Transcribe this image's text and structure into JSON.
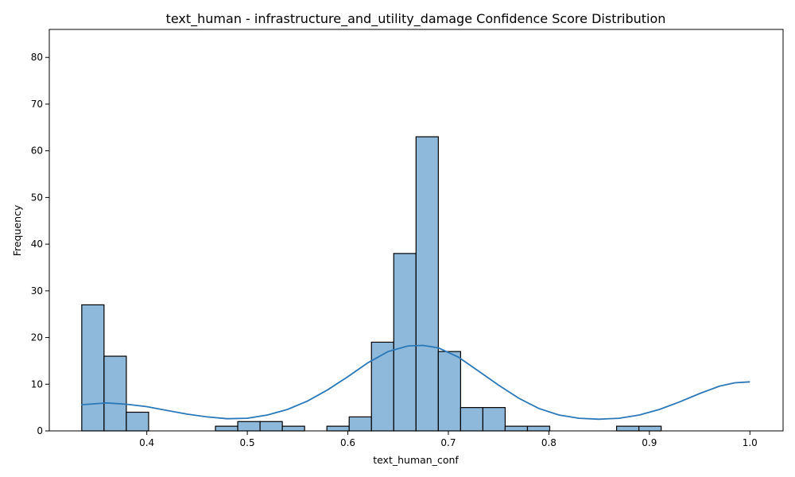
{
  "chart_data": {
    "type": "bar",
    "title": "text_human - infrastructure_and_utility_damage Confidence Score Distribution",
    "xlabel": "text_human_conf",
    "ylabel": "Frequency",
    "xlim": [
      0.303,
      1.033
    ],
    "ylim": [
      0,
      86
    ],
    "xticks": [
      0.4,
      0.5,
      0.6,
      0.7,
      0.8,
      0.9,
      1.0
    ],
    "xtick_labels": [
      "0.4",
      "0.5",
      "0.6",
      "0.7",
      "0.8",
      "0.9",
      "1.0"
    ],
    "yticks": [
      0,
      10,
      20,
      30,
      40,
      50,
      60,
      70,
      80
    ],
    "ytick_labels": [
      "0",
      "10",
      "20",
      "30",
      "40",
      "50",
      "60",
      "70",
      "80"
    ],
    "bin_start": 0.3353,
    "bin_width": 0.02217,
    "values": [
      27,
      16,
      4,
      0,
      0,
      0,
      1,
      2,
      2,
      1,
      0,
      1,
      3,
      19,
      38,
      63,
      17,
      5,
      5,
      1,
      1,
      0,
      0,
      0,
      1,
      1,
      0,
      0,
      0,
      0
    ],
    "kde": {
      "x": [
        0.335,
        0.36,
        0.38,
        0.4,
        0.42,
        0.44,
        0.46,
        0.48,
        0.5,
        0.52,
        0.54,
        0.56,
        0.58,
        0.6,
        0.62,
        0.64,
        0.66,
        0.675,
        0.69,
        0.71,
        0.73,
        0.75,
        0.77,
        0.79,
        0.81,
        0.83,
        0.85,
        0.87,
        0.89,
        0.91,
        0.93,
        0.95,
        0.97,
        0.985,
        1.0
      ],
      "y": [
        5.6,
        6.0,
        5.7,
        5.2,
        4.4,
        3.6,
        3.0,
        2.6,
        2.7,
        3.4,
        4.6,
        6.4,
        8.8,
        11.6,
        14.6,
        17.0,
        18.2,
        18.3,
        17.8,
        15.8,
        12.8,
        9.8,
        7.0,
        4.8,
        3.4,
        2.7,
        2.5,
        2.7,
        3.4,
        4.6,
        6.2,
        8.0,
        9.6,
        10.3,
        10.5
      ]
    }
  }
}
